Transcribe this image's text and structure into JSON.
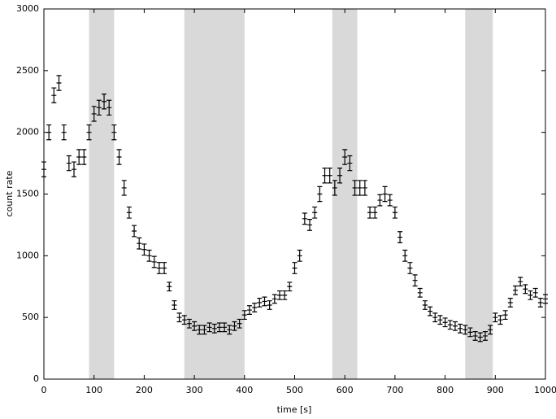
{
  "chart_data": {
    "type": "errorbar",
    "xlabel": "time [s]",
    "ylabel": "count rate",
    "xlim": [
      0,
      1000
    ],
    "ylim": [
      0,
      3000
    ],
    "xticks": [
      0,
      100,
      200,
      300,
      400,
      500,
      600,
      700,
      800,
      900,
      1000
    ],
    "yticks": [
      0,
      500,
      1000,
      1500,
      2000,
      2500,
      3000
    ],
    "shaded_intervals": [
      [
        90,
        140
      ],
      [
        280,
        400
      ],
      [
        575,
        625
      ],
      [
        840,
        895
      ]
    ],
    "shade_color": "#d9d9d9",
    "series": [
      {
        "color": "#000000",
        "x": [
          0,
          10,
          20,
          30,
          40,
          50,
          60,
          70,
          80,
          90,
          100,
          110,
          120,
          130,
          140,
          150,
          160,
          170,
          180,
          190,
          200,
          210,
          220,
          230,
          240,
          250,
          260,
          270,
          280,
          290,
          300,
          310,
          320,
          330,
          340,
          350,
          360,
          370,
          380,
          390,
          400,
          410,
          420,
          430,
          440,
          450,
          460,
          470,
          480,
          490,
          500,
          510,
          520,
          530,
          540,
          550,
          560,
          570,
          580,
          590,
          600,
          610,
          620,
          630,
          640,
          650,
          660,
          670,
          680,
          690,
          700,
          710,
          720,
          730,
          740,
          750,
          760,
          770,
          780,
          790,
          800,
          810,
          820,
          830,
          840,
          850,
          860,
          870,
          880,
          890,
          900,
          910,
          920,
          930,
          940,
          950,
          960,
          970,
          980,
          990,
          1000
        ],
        "values": [
          1700,
          2000,
          2300,
          2400,
          2000,
          1750,
          1700,
          1800,
          1800,
          2000,
          2150,
          2200,
          2250,
          2200,
          2000,
          1800,
          1550,
          1350,
          1200,
          1100,
          1050,
          1000,
          950,
          900,
          900,
          750,
          600,
          500,
          480,
          450,
          430,
          400,
          400,
          420,
          410,
          420,
          420,
          400,
          430,
          450,
          520,
          560,
          580,
          620,
          630,
          600,
          650,
          680,
          680,
          750,
          900,
          1000,
          1300,
          1250,
          1350,
          1500,
          1650,
          1650,
          1550,
          1650,
          1800,
          1750,
          1550,
          1550,
          1550,
          1350,
          1350,
          1450,
          1500,
          1450,
          1350,
          1150,
          1000,
          900,
          800,
          700,
          600,
          550,
          500,
          480,
          460,
          440,
          430,
          410,
          400,
          380,
          350,
          340,
          350,
          400,
          500,
          480,
          520,
          620,
          720,
          790,
          730,
          680,
          700,
          620,
          650
        ],
        "errors": [
          60,
          60,
          60,
          60,
          60,
          60,
          60,
          60,
          60,
          60,
          60,
          60,
          60,
          60,
          60,
          60,
          60,
          45,
          45,
          45,
          45,
          45,
          45,
          45,
          45,
          35,
          35,
          35,
          35,
          35,
          35,
          35,
          35,
          35,
          35,
          35,
          35,
          35,
          35,
          35,
          35,
          35,
          35,
          35,
          35,
          35,
          35,
          35,
          35,
          35,
          45,
          45,
          45,
          45,
          45,
          60,
          60,
          60,
          60,
          60,
          60,
          60,
          60,
          60,
          60,
          45,
          45,
          45,
          60,
          45,
          45,
          45,
          45,
          45,
          45,
          35,
          35,
          35,
          35,
          35,
          35,
          35,
          35,
          35,
          35,
          35,
          35,
          35,
          35,
          35,
          35,
          35,
          35,
          35,
          35,
          35,
          35,
          35,
          35,
          35,
          35
        ]
      }
    ]
  }
}
